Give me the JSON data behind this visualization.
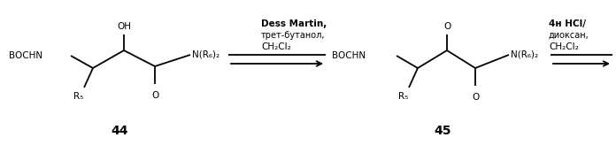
{
  "bg_color": "#ffffff",
  "fig_width": 6.96,
  "fig_height": 1.64,
  "dpi": 100,
  "compound44_label": "44",
  "compound45_label": "45",
  "arrow1_line1": "Dess Martin,",
  "arrow1_line2": "трет-бутанол,",
  "arrow1_line3": "CH₂Cl₂",
  "arrow2_line1": "4н HCl/",
  "arrow2_line2": "диоксан,",
  "arrow2_line3": "CH₂Cl₂",
  "lw": 1.3
}
